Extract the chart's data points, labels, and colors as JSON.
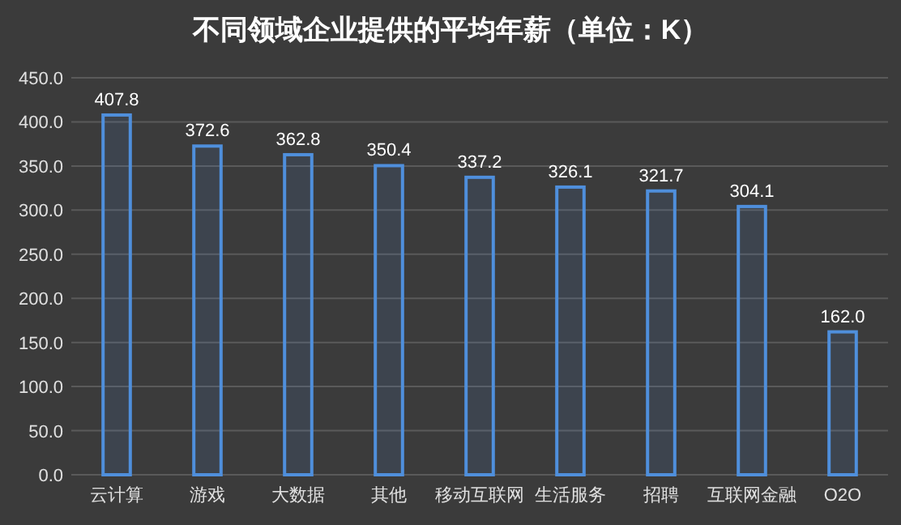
{
  "chart_data": {
    "type": "bar",
    "title": "不同领域企业提供的平均年薪（单位：K）",
    "categories": [
      "云计算",
      "游戏",
      "大数据",
      "其他",
      "移动互联网",
      "生活服务",
      "招聘",
      "互联网金融",
      "O2O"
    ],
    "values": [
      407.8,
      372.6,
      362.8,
      350.4,
      337.2,
      326.1,
      321.7,
      304.1,
      162.0
    ],
    "value_labels": [
      "407.8",
      "372.6",
      "362.8",
      "350.4",
      "337.2",
      "326.1",
      "321.7",
      "304.1",
      "162.0"
    ],
    "color": "#4f8fdc",
    "ylim": [
      0,
      450
    ],
    "yticks": [
      {
        "value": 0,
        "label": "0.0"
      },
      {
        "value": 50,
        "label": "50.0"
      },
      {
        "value": 100,
        "label": "100.0"
      },
      {
        "value": 150,
        "label": "150.0"
      },
      {
        "value": 200,
        "label": "200.0"
      },
      {
        "value": 250,
        "label": "250.0"
      },
      {
        "value": 300,
        "label": "300.0"
      },
      {
        "value": 350,
        "label": "350.0"
      },
      {
        "value": 400,
        "label": "400.0"
      },
      {
        "value": 450,
        "label": "450.0"
      }
    ],
    "grid": "y"
  }
}
